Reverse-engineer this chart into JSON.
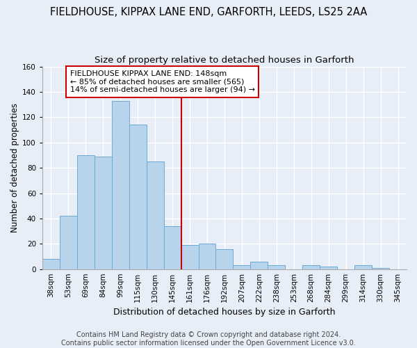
{
  "title": "FIELDHOUSE, KIPPAX LANE END, GARFORTH, LEEDS, LS25 2AA",
  "subtitle": "Size of property relative to detached houses in Garforth",
  "xlabel": "Distribution of detached houses by size in Garforth",
  "ylabel": "Number of detached properties",
  "bin_labels": [
    "38sqm",
    "53sqm",
    "69sqm",
    "84sqm",
    "99sqm",
    "115sqm",
    "130sqm",
    "145sqm",
    "161sqm",
    "176sqm",
    "192sqm",
    "207sqm",
    "222sqm",
    "238sqm",
    "253sqm",
    "268sqm",
    "284sqm",
    "299sqm",
    "314sqm",
    "330sqm",
    "345sqm"
  ],
  "bar_values": [
    8,
    42,
    90,
    89,
    133,
    114,
    85,
    34,
    19,
    20,
    16,
    3,
    6,
    3,
    0,
    3,
    2,
    0,
    3,
    1,
    0
  ],
  "bar_color": "#b8d4ec",
  "bar_edge_color": "#6aaad4",
  "vline_color": "#cc0000",
  "annotation_box_text": "FIELDHOUSE KIPPAX LANE END: 148sqm\n← 85% of detached houses are smaller (565)\n14% of semi-detached houses are larger (94) →",
  "annotation_box_edge_color": "#cc0000",
  "ylim": [
    0,
    160
  ],
  "yticks": [
    0,
    20,
    40,
    60,
    80,
    100,
    120,
    140,
    160
  ],
  "footer_text": "Contains HM Land Registry data © Crown copyright and database right 2024.\nContains public sector information licensed under the Open Government Licence v3.0.",
  "bg_color": "#e8eef8",
  "grid_color": "#ffffff",
  "title_fontsize": 10.5,
  "subtitle_fontsize": 9.5,
  "xlabel_fontsize": 9,
  "ylabel_fontsize": 8.5,
  "tick_fontsize": 7.5,
  "annotation_fontsize": 8,
  "footer_fontsize": 7
}
